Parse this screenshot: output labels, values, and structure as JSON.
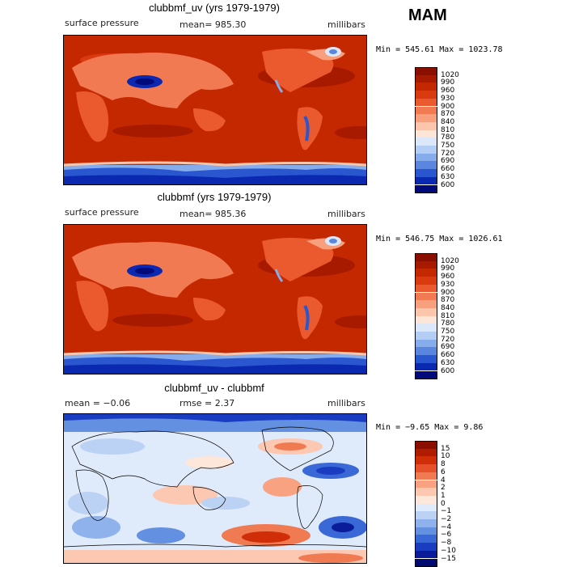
{
  "season": "MAM",
  "panels": [
    {
      "title": "clubbmf_uv (yrs 1979-1979)",
      "left_label": "surface pressure",
      "center_label": "mean= 985.30",
      "right_label": "millibars",
      "minmax": "Min = 545.61 Max = 1023.78",
      "legend_levels": [
        "1020",
        "990",
        "960",
        "930",
        "900",
        "870",
        "840",
        "810",
        "780",
        "750",
        "720",
        "690",
        "660",
        "630",
        "600"
      ],
      "legend_colors": [
        "#8a0f00",
        "#a81a00",
        "#c42800",
        "#da3a10",
        "#ea5a2e",
        "#f27a52",
        "#f8a07e",
        "#fbc6ac",
        "#fde6d8",
        "#dce8fa",
        "#b4cdf4",
        "#86acec",
        "#5a86e0",
        "#2a56d0",
        "#0a28b0",
        "#000a7a"
      ]
    },
    {
      "title": "clubbmf (yrs 1979-1979)",
      "left_label": "surface pressure",
      "center_label": "mean= 985.36",
      "right_label": "millibars",
      "minmax": "Min = 546.75 Max = 1026.61",
      "legend_levels": [
        "1020",
        "990",
        "960",
        "930",
        "900",
        "870",
        "840",
        "810",
        "780",
        "750",
        "720",
        "690",
        "660",
        "630",
        "600"
      ],
      "legend_colors": [
        "#8a0f00",
        "#a81a00",
        "#c42800",
        "#da3a10",
        "#ea5a2e",
        "#f27a52",
        "#f8a07e",
        "#fbc6ac",
        "#fde6d8",
        "#dce8fa",
        "#b4cdf4",
        "#86acec",
        "#5a86e0",
        "#2a56d0",
        "#0a28b0",
        "#000a7a"
      ]
    },
    {
      "title": "clubbmf_uv - clubbmf",
      "left_label": "mean =  −0.06",
      "center_label": "rmse =   2.37",
      "right_label": "millibars",
      "minmax": "Min = −9.65 Max =   9.86",
      "legend_levels": [
        "15",
        "10",
        "8",
        "6",
        "4",
        "2",
        "1",
        "0",
        "−1",
        "−2",
        "−4",
        "−6",
        "−8",
        "−10",
        "−15"
      ],
      "legend_colors": [
        "#8a0f00",
        "#b01c00",
        "#d02e08",
        "#e6502a",
        "#f07a52",
        "#f8a282",
        "#fcc8b2",
        "#fde6da",
        "#dfeafa",
        "#bcd2f4",
        "#90b2ec",
        "#6490e2",
        "#3a68d6",
        "#1a3cc0",
        "#0a1c9a",
        "#000a70"
      ]
    }
  ]
}
